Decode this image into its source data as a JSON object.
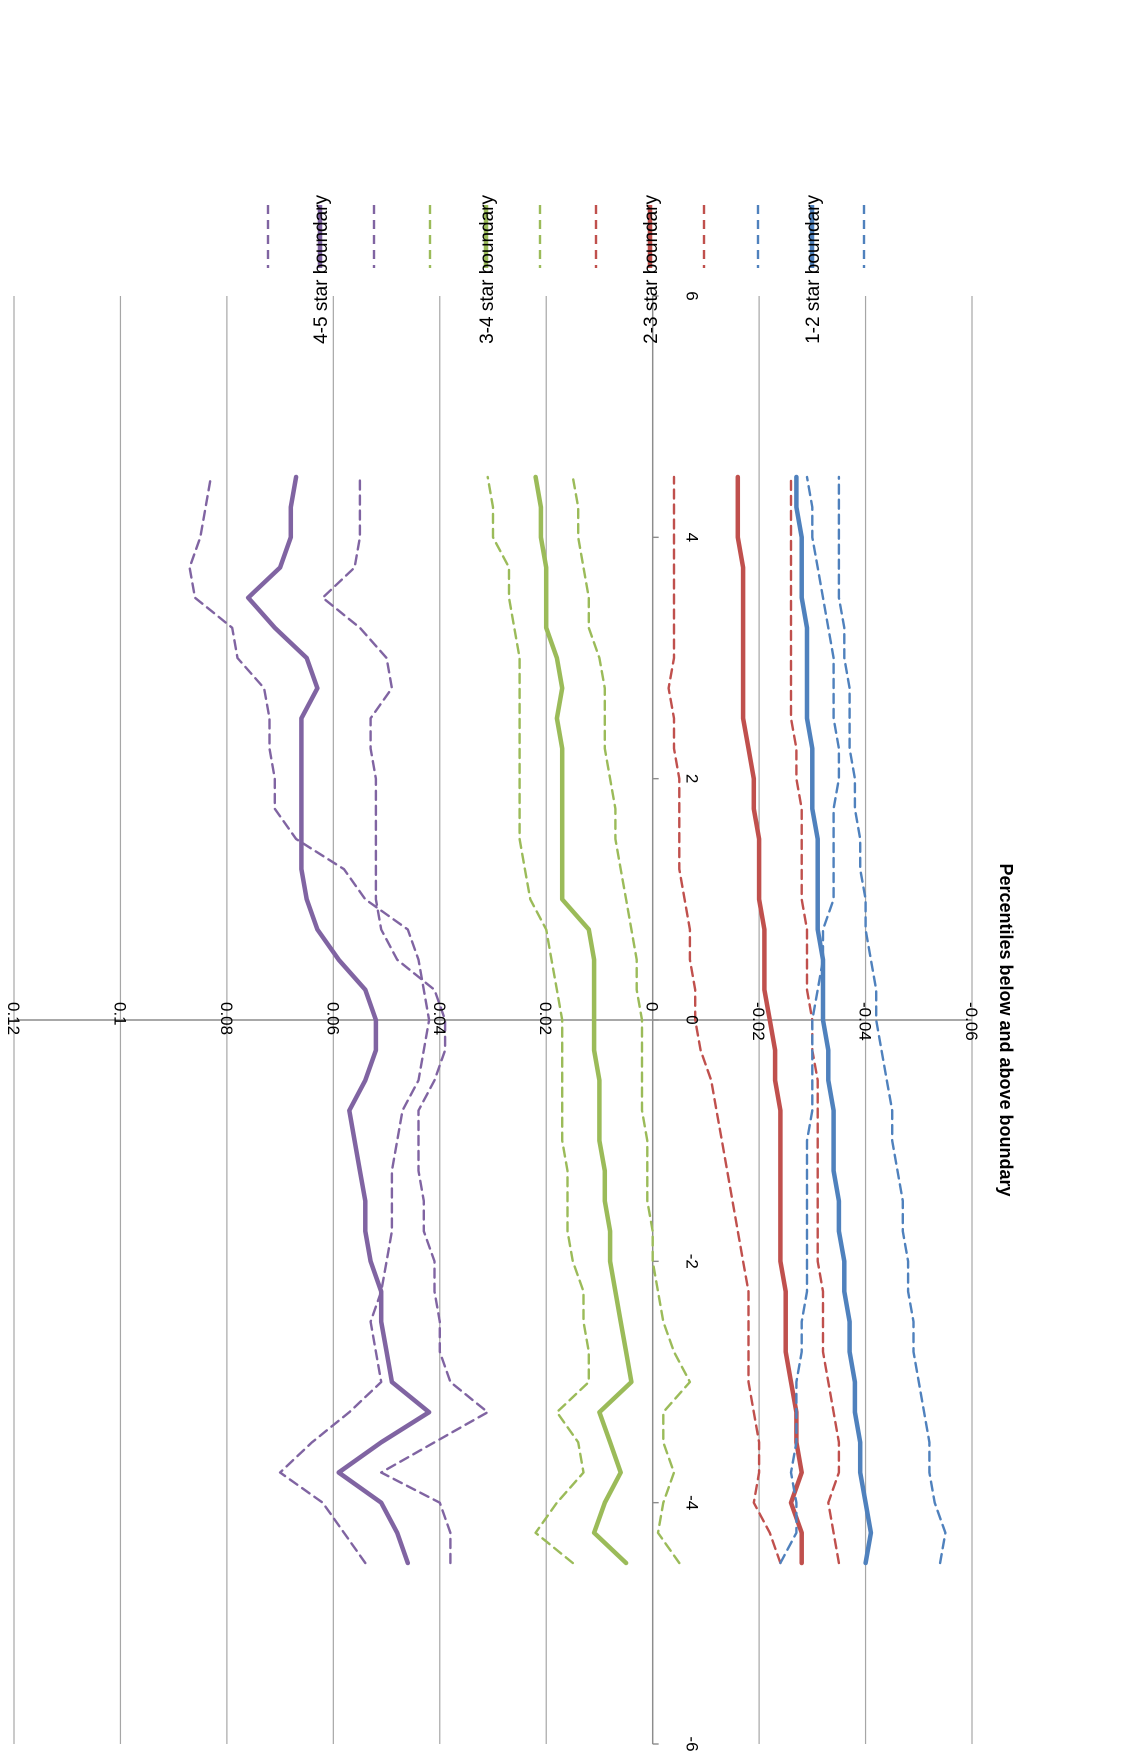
{
  "chart_data": {
    "type": "line",
    "title": "",
    "xlabel": "Percentiles below and above boundary",
    "ylabel": "",
    "xlim": [
      -6,
      6
    ],
    "ylim": [
      -0.06,
      0.12
    ],
    "x_ticks": [
      "-6",
      "-4",
      "-2",
      "0",
      "2",
      "4",
      "6"
    ],
    "y_ticks": [
      "-0.06",
      "-0.04",
      "-0.02",
      "0",
      "0.02",
      "0.04",
      "0.06",
      "0.08",
      "0.1",
      "0.12"
    ],
    "grid": true,
    "rotation": "rotated 90 degrees clockwise",
    "legend_position": "right",
    "x": [
      -4.5,
      -4.25,
      -4.0,
      -3.75,
      -3.5,
      -3.25,
      -3.0,
      -2.75,
      -2.5,
      -2.25,
      -2.0,
      -1.75,
      -1.5,
      -1.25,
      -1.0,
      -0.75,
      -0.5,
      -0.25,
      0.0,
      0.25,
      0.5,
      0.75,
      1.0,
      1.25,
      1.5,
      1.75,
      2.0,
      2.25,
      2.5,
      2.75,
      3.0,
      3.25,
      3.5,
      3.75,
      4.0,
      4.25,
      4.5
    ],
    "series": [
      {
        "name": "",
        "group": "4-5",
        "style": "dashed",
        "color": "#8064a2",
        "values": [
          0.054,
          0.058,
          0.062,
          0.07,
          0.064,
          0.057,
          0.051,
          0.052,
          0.053,
          0.051,
          0.05,
          0.049,
          0.049,
          0.049,
          0.048,
          0.047,
          0.044,
          0.043,
          0.042,
          0.043,
          0.044,
          0.046,
          0.054,
          0.058,
          0.067,
          0.071,
          0.071,
          0.072,
          0.072,
          0.073,
          0.078,
          0.079,
          0.086,
          0.087,
          0.085,
          0.084,
          0.083
        ]
      },
      {
        "name": "4-5 star boundary",
        "group": "4-5",
        "style": "solid",
        "color": "#8064a2",
        "values": [
          0.046,
          0.048,
          0.051,
          0.059,
          0.051,
          0.042,
          0.049,
          0.05,
          0.051,
          0.051,
          0.053,
          0.054,
          0.054,
          0.055,
          0.056,
          0.057,
          0.054,
          0.052,
          0.052,
          0.054,
          0.059,
          0.063,
          0.065,
          0.066,
          0.066,
          0.066,
          0.066,
          0.066,
          0.066,
          0.063,
          0.065,
          0.071,
          0.076,
          0.07,
          0.068,
          0.068,
          0.067
        ]
      },
      {
        "name": "",
        "group": "4-5",
        "style": "dashed",
        "color": "#8064a2",
        "values": [
          0.038,
          0.038,
          0.04,
          0.051,
          0.041,
          0.031,
          0.038,
          0.04,
          0.04,
          0.041,
          0.041,
          0.043,
          0.043,
          0.044,
          0.044,
          0.044,
          0.041,
          0.039,
          0.039,
          0.041,
          0.048,
          0.051,
          0.052,
          0.052,
          0.052,
          0.052,
          0.052,
          0.053,
          0.053,
          0.049,
          0.05,
          0.055,
          0.062,
          0.056,
          0.055,
          0.055,
          0.055
        ]
      },
      {
        "name": "",
        "group": "3-4",
        "style": "dashed",
        "color": "#9bbb59",
        "values": [
          0.015,
          0.022,
          0.018,
          0.013,
          0.014,
          0.018,
          0.012,
          0.012,
          0.013,
          0.013,
          0.015,
          0.016,
          0.016,
          0.016,
          0.017,
          0.017,
          0.017,
          0.017,
          0.017,
          0.018,
          0.019,
          0.02,
          0.023,
          0.024,
          0.025,
          0.025,
          0.025,
          0.025,
          0.025,
          0.025,
          0.025,
          0.026,
          0.027,
          0.027,
          0.03,
          0.03,
          0.031
        ]
      },
      {
        "name": "3-4 star boundary",
        "group": "3-4",
        "style": "solid",
        "color": "#9bbb59",
        "values": [
          0.005,
          0.011,
          0.009,
          0.006,
          0.008,
          0.01,
          0.004,
          0.005,
          0.006,
          0.007,
          0.008,
          0.008,
          0.009,
          0.009,
          0.01,
          0.01,
          0.01,
          0.011,
          0.011,
          0.011,
          0.011,
          0.012,
          0.017,
          0.017,
          0.017,
          0.017,
          0.017,
          0.017,
          0.018,
          0.017,
          0.018,
          0.02,
          0.02,
          0.02,
          0.021,
          0.021,
          0.022
        ]
      },
      {
        "name": "",
        "group": "3-4",
        "style": "dashed",
        "color": "#9bbb59",
        "values": [
          -0.005,
          -0.001,
          -0.002,
          -0.004,
          -0.002,
          -0.002,
          -0.007,
          -0.004,
          -0.002,
          -0.001,
          0.0,
          0.0,
          0.001,
          0.001,
          0.001,
          0.002,
          0.002,
          0.002,
          0.002,
          0.003,
          0.003,
          0.004,
          0.005,
          0.006,
          0.007,
          0.007,
          0.008,
          0.009,
          0.009,
          0.009,
          0.01,
          0.012,
          0.012,
          0.013,
          0.014,
          0.014,
          0.015
        ]
      },
      {
        "name": "",
        "group": "2-3",
        "style": "dashed",
        "color": "#c0504d",
        "values": [
          -0.024,
          -0.022,
          -0.019,
          -0.02,
          -0.02,
          -0.019,
          -0.018,
          -0.018,
          -0.018,
          -0.018,
          -0.017,
          -0.016,
          -0.015,
          -0.014,
          -0.013,
          -0.012,
          -0.011,
          -0.009,
          -0.008,
          -0.008,
          -0.007,
          -0.007,
          -0.006,
          -0.005,
          -0.005,
          -0.005,
          -0.005,
          -0.004,
          -0.004,
          -0.003,
          -0.004,
          -0.004,
          -0.004,
          -0.004,
          -0.004,
          -0.004,
          -0.004
        ]
      },
      {
        "name": "2-3 star boundary",
        "group": "2-3",
        "style": "solid",
        "color": "#c0504d",
        "values": [
          -0.028,
          -0.028,
          -0.026,
          -0.028,
          -0.027,
          -0.027,
          -0.026,
          -0.025,
          -0.025,
          -0.025,
          -0.024,
          -0.024,
          -0.024,
          -0.024,
          -0.024,
          -0.024,
          -0.023,
          -0.023,
          -0.022,
          -0.021,
          -0.021,
          -0.021,
          -0.02,
          -0.02,
          -0.02,
          -0.019,
          -0.019,
          -0.018,
          -0.017,
          -0.017,
          -0.017,
          -0.017,
          -0.017,
          -0.017,
          -0.016,
          -0.016,
          -0.016
        ]
      },
      {
        "name": "",
        "group": "2-3",
        "style": "dashed",
        "color": "#c0504d",
        "values": [
          -0.035,
          -0.034,
          -0.033,
          -0.035,
          -0.035,
          -0.034,
          -0.033,
          -0.032,
          -0.032,
          -0.032,
          -0.031,
          -0.031,
          -0.031,
          -0.031,
          -0.031,
          -0.031,
          -0.031,
          -0.03,
          -0.03,
          -0.029,
          -0.029,
          -0.029,
          -0.028,
          -0.028,
          -0.028,
          -0.028,
          -0.027,
          -0.027,
          -0.026,
          -0.026,
          -0.026,
          -0.026,
          -0.026,
          -0.026,
          -0.026,
          -0.026,
          -0.026
        ]
      },
      {
        "name": "",
        "group": "1-2",
        "style": "dashed",
        "color": "#4f81bd",
        "values": [
          -0.024,
          -0.027,
          -0.027,
          -0.026,
          -0.027,
          -0.027,
          -0.027,
          -0.028,
          -0.028,
          -0.029,
          -0.029,
          -0.029,
          -0.029,
          -0.029,
          -0.029,
          -0.03,
          -0.03,
          -0.03,
          -0.03,
          -0.031,
          -0.032,
          -0.032,
          -0.034,
          -0.034,
          -0.034,
          -0.034,
          -0.035,
          -0.035,
          -0.034,
          -0.034,
          -0.034,
          -0.033,
          -0.032,
          -0.031,
          -0.03,
          -0.03,
          -0.029
        ]
      },
      {
        "name": "1-2 star boundary",
        "group": "1-2",
        "style": "solid",
        "color": "#4f81bd",
        "values": [
          -0.04,
          -0.041,
          -0.04,
          -0.039,
          -0.039,
          -0.038,
          -0.038,
          -0.037,
          -0.037,
          -0.036,
          -0.036,
          -0.035,
          -0.035,
          -0.034,
          -0.034,
          -0.034,
          -0.033,
          -0.033,
          -0.032,
          -0.032,
          -0.032,
          -0.031,
          -0.031,
          -0.031,
          -0.031,
          -0.03,
          -0.03,
          -0.03,
          -0.029,
          -0.029,
          -0.029,
          -0.029,
          -0.028,
          -0.028,
          -0.028,
          -0.027,
          -0.027
        ]
      },
      {
        "name": "",
        "group": "1-2",
        "style": "dashed",
        "color": "#4f81bd",
        "values": [
          -0.054,
          -0.055,
          -0.053,
          -0.052,
          -0.052,
          -0.051,
          -0.05,
          -0.049,
          -0.049,
          -0.048,
          -0.048,
          -0.047,
          -0.047,
          -0.046,
          -0.045,
          -0.045,
          -0.044,
          -0.043,
          -0.042,
          -0.042,
          -0.041,
          -0.04,
          -0.04,
          -0.039,
          -0.039,
          -0.038,
          -0.038,
          -0.037,
          -0.037,
          -0.037,
          -0.036,
          -0.036,
          -0.035,
          -0.035,
          -0.035,
          -0.035,
          -0.035
        ]
      }
    ],
    "legend": [
      {
        "label": "",
        "style": "dashed",
        "color": "#8064a2"
      },
      {
        "label": "4-5 star boundary",
        "style": "solid",
        "color": "#8064a2"
      },
      {
        "label": "",
        "style": "dashed",
        "color": "#8064a2"
      },
      {
        "label": "",
        "style": "dashed",
        "color": "#9bbb59"
      },
      {
        "label": "3-4 star boundary",
        "style": "solid",
        "color": "#9bbb59"
      },
      {
        "label": "",
        "style": "dashed",
        "color": "#9bbb59"
      },
      {
        "label": "",
        "style": "dashed",
        "color": "#c0504d"
      },
      {
        "label": "2-3 star boundary",
        "style": "solid",
        "color": "#c0504d"
      },
      {
        "label": "",
        "style": "dashed",
        "color": "#c0504d"
      },
      {
        "label": "",
        "style": "dashed",
        "color": "#4f81bd"
      },
      {
        "label": "1-2 star boundary",
        "style": "solid",
        "color": "#4f81bd"
      },
      {
        "label": "",
        "style": "dashed",
        "color": "#4f81bd"
      }
    ]
  }
}
